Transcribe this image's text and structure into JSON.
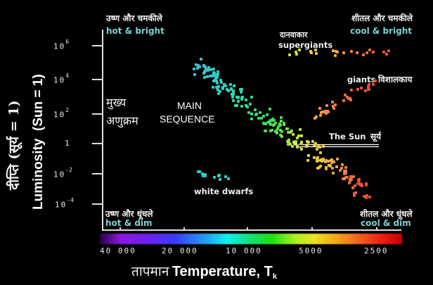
{
  "diagram": {
    "type": "Hertzsprung-Russell diagram",
    "y_axis": {
      "label_en": "Luminosity  (Sun = 1)",
      "label_hi": "दीप्ति (सूर्य = 1)",
      "ticks": [
        {
          "base": "10",
          "exp": "6"
        },
        {
          "base": "10",
          "exp": "4"
        },
        {
          "base": "10",
          "exp": "2"
        },
        {
          "base": "1",
          "exp": ""
        },
        {
          "base": "10",
          "exp": "-2"
        },
        {
          "base": "10",
          "exp": "-4"
        }
      ]
    },
    "x_axis": {
      "label_hi": "तापमान",
      "label_en": "Temperature, T",
      "label_sub": "k",
      "ticks": [
        "40 000",
        "20 000",
        "10 000",
        "5000",
        "2500"
      ]
    },
    "corners": {
      "top_left": {
        "hi": "उष्ण और चमकीले",
        "en": "hot & bright"
      },
      "top_right": {
        "hi": "शीतल और चमकीले",
        "en": "cool & bright"
      },
      "bottom_left": {
        "hi": "उष्ण और धूंधले",
        "en": "hot & dim"
      },
      "bottom_right": {
        "hi": "शीतल और धूंधले",
        "en": "cool & dim"
      }
    },
    "regions": {
      "main_sequence_hi_1": "मुख्य",
      "main_sequence_hi_2": "अणुक्रम",
      "main_sequence_en_1": "MAIN",
      "main_sequence_en_2": "SEQUENCE",
      "supergiants_hi": "दानवाकार",
      "supergiants_en": "supergiants",
      "giants_en": "giants",
      "giants_hi": "विशालकाय",
      "white_dwarfs_en": "white dwarfs",
      "sun_en": "The Sun",
      "sun_hi": "सूर्य"
    },
    "colors": {
      "background": "#000000",
      "corner_en_text": "#7fd0d0",
      "spectrum": [
        "#7a10d0",
        "#9a20f0",
        "#4040ff",
        "#20c0f0",
        "#10f0e0",
        "#10e060",
        "#20e020",
        "#c0f020",
        "#f0e020",
        "#f0a020",
        "#f06020",
        "#f02010",
        "#d00000"
      ]
    }
  }
}
